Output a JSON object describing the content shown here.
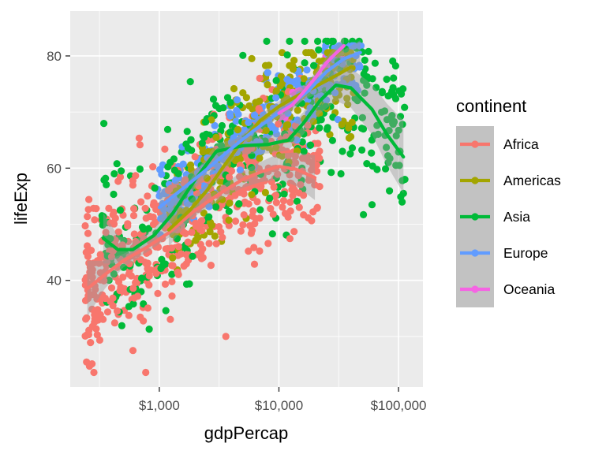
{
  "chart_data": {
    "type": "scatter",
    "xlabel": "gdpPercap",
    "ylabel": "lifeExp",
    "x_scale": "log10",
    "xlim": [
      180,
      160000
    ],
    "ylim": [
      21,
      88
    ],
    "x_ticks": [
      1000,
      10000,
      100000
    ],
    "x_tick_labels": [
      "$1,000",
      "$10,000",
      "$100,000"
    ],
    "y_ticks": [
      40,
      60,
      80
    ],
    "y_tick_labels": [
      "40",
      "60",
      "80"
    ],
    "grid": true,
    "smooth": "loess with confidence band",
    "legend": {
      "title": "continent",
      "position": "right"
    },
    "series": [
      {
        "name": "Africa",
        "color": "#F8766D",
        "range": {
          "x": [
            240,
            22000
          ],
          "y": [
            23.6,
            76
          ]
        },
        "outliers": [
          [
            770,
            23.6
          ],
          [
            245,
            45
          ],
          [
            3600,
            30
          ],
          [
            21000,
            53
          ]
        ],
        "smooth": [
          [
            250,
            38.5
          ],
          [
            350,
            41
          ],
          [
            500,
            43.5
          ],
          [
            800,
            46
          ],
          [
            1200,
            48.5
          ],
          [
            2000,
            52.5
          ],
          [
            3500,
            56
          ],
          [
            5000,
            58
          ],
          [
            7000,
            59.3
          ],
          [
            10000,
            60.3
          ],
          [
            14000,
            59.8
          ],
          [
            20000,
            58.3
          ]
        ],
        "band_halfwidth": [
          5,
          2.5,
          1.2,
          0.9,
          0.9,
          1,
          1.2,
          1.5,
          1.8,
          2.3,
          3,
          4
        ]
      },
      {
        "name": "Americas",
        "color": "#A3A500",
        "range": {
          "x": [
            1200,
            42000
          ],
          "y": [
            37,
            80.6
          ]
        },
        "outliers": [],
        "smooth": [
          [
            1200,
            49
          ],
          [
            1800,
            52.5
          ],
          [
            2500,
            56
          ],
          [
            3500,
            60.5
          ],
          [
            5000,
            65
          ],
          [
            7000,
            68.5
          ],
          [
            10000,
            71
          ],
          [
            14000,
            72.8
          ],
          [
            20000,
            74.5
          ],
          [
            30000,
            76.5
          ],
          [
            40000,
            78
          ]
        ],
        "band_halfwidth": [
          3,
          1.8,
          1.3,
          1.1,
          1,
          1,
          1,
          1.2,
          1.5,
          2,
          2.6
        ]
      },
      {
        "name": "Asia",
        "color": "#00BA38",
        "range": {
          "x": [
            330,
            113000
          ],
          "y": [
            28.8,
            82.6
          ]
        },
        "outliers": [
          [
            420,
            59
          ],
          [
            480,
            59.5
          ],
          [
            110000,
            55.5
          ],
          [
            113000,
            58
          ],
          [
            108000,
            67.8
          ],
          [
            95000,
            60.5
          ],
          [
            60000,
            65
          ],
          [
            50000,
            69
          ],
          [
            33000,
            59
          ],
          [
            34000,
            63
          ]
        ],
        "smooth": [
          [
            340,
            47.5
          ],
          [
            450,
            45.5
          ],
          [
            600,
            45.5
          ],
          [
            900,
            48
          ],
          [
            1300,
            52
          ],
          [
            2000,
            58
          ],
          [
            3000,
            63
          ],
          [
            5000,
            64
          ],
          [
            8000,
            64.2
          ],
          [
            12000,
            65
          ],
          [
            16000,
            68
          ],
          [
            22000,
            72
          ],
          [
            30000,
            74.8
          ],
          [
            40000,
            74.3
          ],
          [
            60000,
            70.5
          ],
          [
            80000,
            66
          ],
          [
            110000,
            62
          ]
        ],
        "band_halfwidth": [
          4.5,
          2.5,
          1.5,
          1.2,
          1.2,
          1.3,
          1.4,
          1.5,
          1.6,
          1.8,
          2,
          2.3,
          2.8,
          3.5,
          4.5,
          5.5,
          6.5
        ]
      },
      {
        "name": "Europe",
        "color": "#619CFF",
        "range": {
          "x": [
            970,
            49500
          ],
          "y": [
            43.6,
            81.8
          ]
        },
        "outliers": [],
        "smooth": [
          [
            1000,
            53
          ],
          [
            1500,
            56
          ],
          [
            2500,
            59.8
          ],
          [
            4000,
            63.5
          ],
          [
            6000,
            66.5
          ],
          [
            9000,
            69.2
          ],
          [
            13000,
            71.5
          ],
          [
            18000,
            74
          ],
          [
            25000,
            77.2
          ],
          [
            35000,
            79.5
          ],
          [
            48000,
            80.6
          ]
        ],
        "band_halfwidth": [
          3,
          2,
          1.5,
          1.2,
          1,
          0.9,
          0.9,
          1,
          1.2,
          1.6,
          2.2
        ]
      },
      {
        "name": "Oceania",
        "color": "#F564E3",
        "range": {
          "x": [
            10000,
            35000
          ],
          "y": [
            69.1,
            81.2
          ]
        },
        "outliers": [],
        "smooth": [
          [
            10000,
            69.8
          ],
          [
            13000,
            71.3
          ],
          [
            16000,
            73.5
          ],
          [
            20000,
            76
          ],
          [
            25000,
            78.8
          ],
          [
            30000,
            80.5
          ],
          [
            35000,
            81.8
          ]
        ],
        "band_halfwidth": [
          1.8,
          1.2,
          1,
          1,
          1,
          1.2,
          1.6
        ]
      }
    ]
  }
}
